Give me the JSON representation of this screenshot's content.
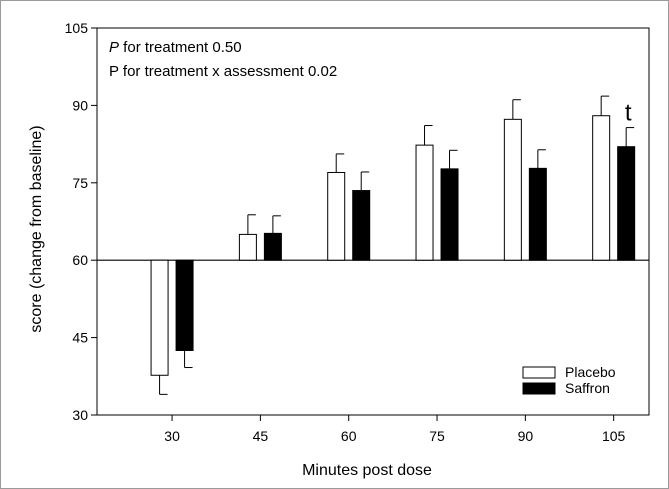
{
  "chart_data": {
    "type": "bar",
    "categories": [
      "30",
      "45",
      "60",
      "75",
      "90",
      "105"
    ],
    "baseline": 60,
    "series": [
      {
        "name": "Placebo",
        "color": "#ffffff",
        "values": [
          37.7,
          65.0,
          77.0,
          82.3,
          87.3,
          88.0
        ],
        "errors": [
          3.7,
          3.8,
          3.6,
          3.8,
          3.8,
          3.8
        ]
      },
      {
        "name": "Saffron",
        "color": "#000000",
        "values": [
          42.5,
          65.2,
          73.5,
          77.7,
          77.8,
          82.0
        ],
        "errors": [
          3.3,
          3.4,
          3.6,
          3.6,
          3.6,
          3.7
        ]
      }
    ],
    "xlabel": "Minutes post dose",
    "ylabel": "score (change from baseline)",
    "ylim": [
      30,
      105
    ],
    "yticks": [
      "30",
      "45",
      "60",
      "75",
      "90",
      "105"
    ],
    "grid": false,
    "legend_position": "bottom-right",
    "annotations": {
      "line1_italic": "P",
      "line1_rest": " for treatment 0.50",
      "line2": "P for treatment x assessment 0.02"
    },
    "significance": {
      "category": "105",
      "series": "Saffron",
      "marker": "t"
    }
  }
}
